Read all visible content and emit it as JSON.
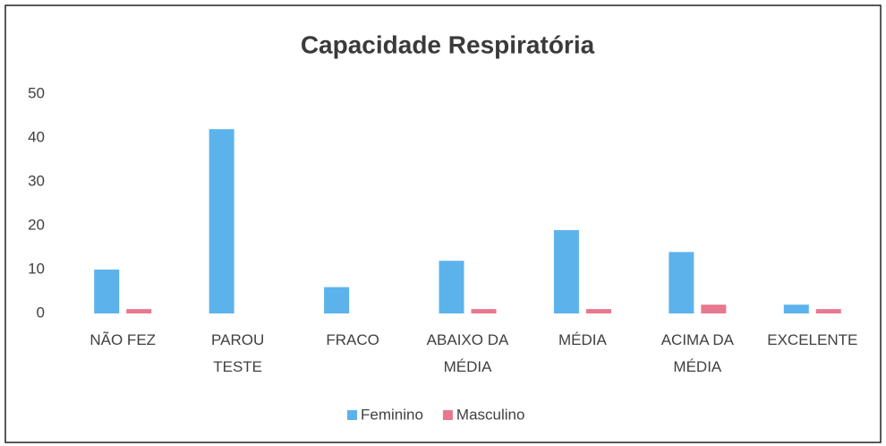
{
  "chart_data": {
    "type": "bar",
    "title": "Capacidade Respiratória",
    "categories": [
      "NÃO FEZ",
      "PAROU\nTESTE",
      "FRACO",
      "ABAIXO DA\nMÉDIA",
      "MÉDIA",
      "ACIMA DA\nMÉDIA",
      "EXCELENTE"
    ],
    "series": [
      {
        "name": "Feminino",
        "color": "#5cb3ec",
        "values": [
          10,
          42,
          6,
          12,
          19,
          14,
          2
        ]
      },
      {
        "name": "Masculino",
        "color": "#e8788f",
        "values": [
          1,
          0,
          0,
          1,
          1,
          2,
          1
        ]
      }
    ],
    "ylim": [
      0,
      50
    ],
    "yticks": [
      0,
      10,
      20,
      30,
      40,
      50
    ],
    "grid": false,
    "legend": "bottom"
  }
}
